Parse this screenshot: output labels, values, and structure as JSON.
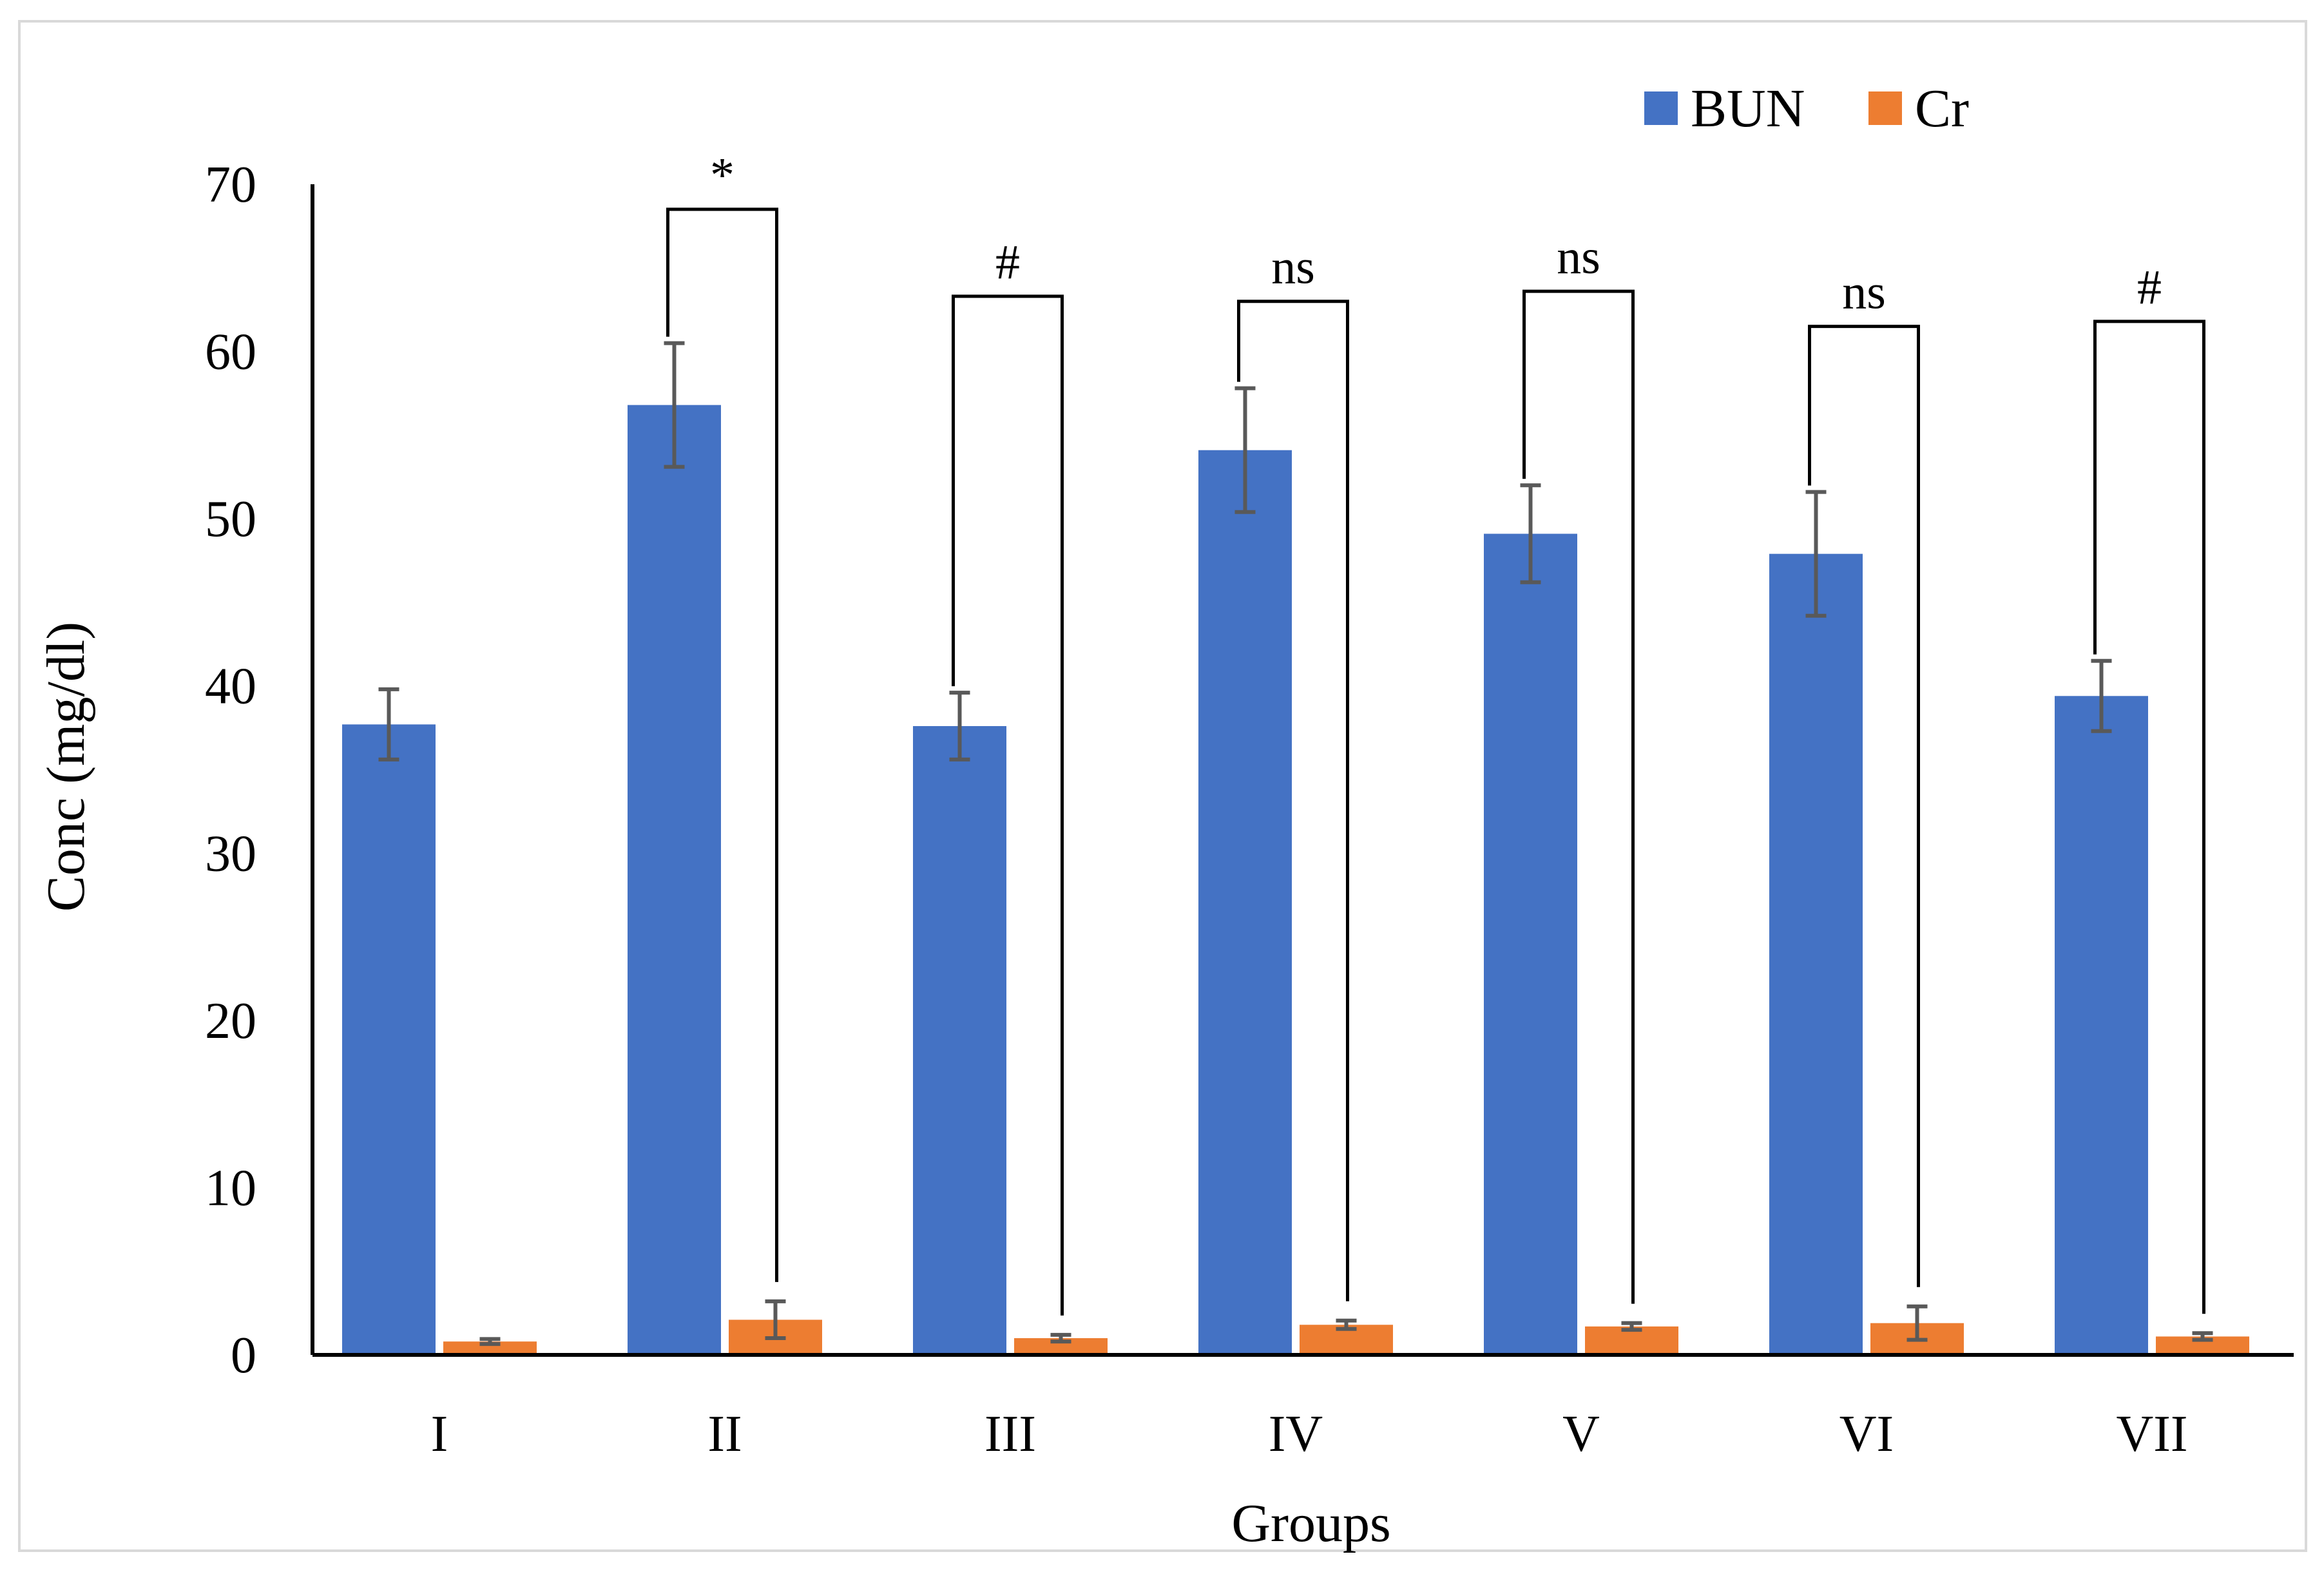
{
  "chart_data": {
    "type": "bar",
    "title": "",
    "xlabel": "Groups",
    "ylabel": "Conc (mg/dl)",
    "ylim": [
      0,
      70
    ],
    "yticks": [
      0,
      10,
      20,
      30,
      40,
      50,
      60,
      70
    ],
    "ytick_labels": [
      "0",
      "10",
      "20",
      "30",
      "40",
      "50",
      "60",
      "70"
    ],
    "grid": false,
    "legend_position": "top-right",
    "categories": [
      "I",
      "II",
      "III",
      "IV",
      "V",
      "VI",
      "VII"
    ],
    "series": [
      {
        "name": "BUN",
        "color": "#4472c4",
        "values": [
          37.7,
          56.8,
          37.6,
          54.1,
          49.1,
          47.9,
          39.4
        ],
        "errors": [
          2.1,
          3.7,
          2.0,
          3.7,
          2.9,
          3.7,
          2.1
        ]
      },
      {
        "name": "Cr",
        "color": "#ed7d31",
        "values": [
          0.8,
          2.1,
          1.0,
          1.8,
          1.7,
          1.9,
          1.1
        ],
        "errors": [
          0.15,
          1.1,
          0.2,
          0.25,
          0.2,
          1.0,
          0.2
        ]
      }
    ],
    "annotations": [
      {
        "category": "II",
        "label": "*",
        "level": 68.5
      },
      {
        "category": "III",
        "label": "#",
        "level": 63.3
      },
      {
        "category": "IV",
        "label": "ns",
        "level": 63.0
      },
      {
        "category": "V",
        "label": "ns",
        "level": 63.6
      },
      {
        "category": "VI",
        "label": "ns",
        "level": 61.5
      },
      {
        "category": "VII",
        "label": "#",
        "level": 61.8
      }
    ]
  }
}
